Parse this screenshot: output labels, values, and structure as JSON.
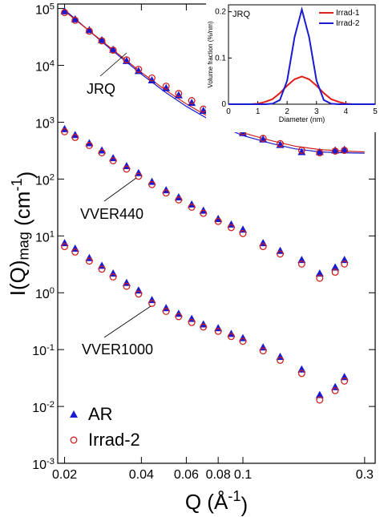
{
  "chart_data": [
    {
      "type": "scatter",
      "xlabel": "Q (Å^-1)",
      "ylabel": "I(Q)_mag (cm^-1)",
      "xscale": "log",
      "yscale": "log",
      "xlim": [
        0.0188,
        0.33
      ],
      "ylim": [
        0.001,
        120000
      ],
      "xticks": [
        0.02,
        0.04,
        0.06,
        0.08,
        0.1,
        0.3
      ],
      "yticks": [
        {
          "value": 0.001,
          "label": "10^-3"
        },
        {
          "value": 0.01,
          "label": "10^-2"
        },
        {
          "value": 0.1,
          "label": "10^-1"
        },
        {
          "value": 1,
          "label": "10^0"
        },
        {
          "value": 10,
          "label": "10^1"
        },
        {
          "value": 100,
          "label": "10^2"
        },
        {
          "value": 1000,
          "label": "10^3"
        },
        {
          "value": 10000,
          "label": "10^4"
        },
        {
          "value": 100000,
          "label": "10^5"
        }
      ],
      "x": [
        0.02,
        0.022,
        0.025,
        0.028,
        0.031,
        0.035,
        0.039,
        0.044,
        0.05,
        0.056,
        0.063,
        0.07,
        0.08,
        0.09,
        0.1,
        0.12,
        0.14,
        0.17,
        0.2,
        0.23,
        0.25
      ],
      "annotations": [
        "JRQ",
        "VVER440",
        "VVER1000"
      ],
      "legend": "lower left",
      "series": [
        {
          "name": "AR",
          "color": "#1a1ad0",
          "marker": "triangle",
          "values": [
            [
              90000,
              65000,
              42000,
              28000,
              19000,
              12000,
              8000,
              5500,
              4000,
              3000,
              2200,
              1600,
              1100,
              800,
              650,
              500,
              400,
              300,
              300,
              320,
              330
            ],
            [
              760,
              600,
              430,
              320,
              235,
              170,
              128,
              90,
              64,
              48,
              36,
              28,
              20,
              16,
              13,
              7.5,
              5.5,
              3.8,
              2.2,
              2.8,
              3.8
            ],
            [
              7.5,
              6,
              4.1,
              3,
              2.2,
              1.5,
              1.1,
              0.75,
              0.54,
              0.43,
              0.35,
              0.28,
              0.24,
              0.19,
              0.16,
              0.11,
              0.075,
              0.045,
              0.016,
              0.022,
              0.033
            ]
          ]
        },
        {
          "name": "Irrad-2",
          "color": "#cc2020",
          "marker": "circle",
          "values": [
            [
              85000,
              62000,
              40000,
              27000,
              18500,
              12500,
              8500,
              6000,
              4300,
              3200,
              2400,
              1700,
              1150,
              850,
              680,
              520,
              420,
              320,
              290,
              310,
              320
            ],
            [
              680,
              540,
              390,
              290,
              210,
              150,
              112,
              80,
              57,
              43,
              32,
              25,
              18,
              14,
              11,
              6.5,
              4.8,
              3.2,
              1.8,
              2.3,
              3.2
            ],
            [
              6.5,
              5.2,
              3.6,
              2.6,
              1.9,
              1.3,
              0.95,
              0.65,
              0.47,
              0.38,
              0.3,
              0.25,
              0.21,
              0.17,
              0.14,
              0.095,
              0.065,
              0.038,
              0.013,
              0.019,
              0.028
            ]
          ]
        }
      ],
      "fits": [
        {
          "color": "#1a1ad0",
          "x": [
            0.02,
            0.03,
            0.04,
            0.05,
            0.06,
            0.08,
            0.1,
            0.13,
            0.16,
            0.2,
            0.25,
            0.3
          ],
          "values": [
            95000,
            20000,
            7000,
            3300,
            1900,
            900,
            580,
            420,
            340,
            300,
            290,
            285
          ]
        },
        {
          "color": "#cc2020",
          "x": [
            0.02,
            0.03,
            0.04,
            0.05,
            0.06,
            0.08,
            0.1,
            0.13,
            0.16,
            0.2,
            0.25,
            0.3
          ],
          "values": [
            90000,
            21000,
            7500,
            3600,
            2100,
            1000,
            650,
            470,
            380,
            330,
            310,
            300
          ]
        }
      ]
    },
    {
      "type": "line",
      "title": "JRQ",
      "xlabel": "Diameter (nm)",
      "ylabel": "Volume fraction (%/nm)",
      "xlim": [
        0,
        5
      ],
      "ylim": [
        0,
        0.215
      ],
      "xticks": [
        0,
        1,
        2,
        3,
        4,
        5
      ],
      "yticks": [
        0,
        0.1,
        0.2
      ],
      "legend": "upper right",
      "x": [
        0,
        0.25,
        0.5,
        0.75,
        1,
        1.25,
        1.5,
        1.75,
        2,
        2.25,
        2.5,
        2.75,
        3,
        3.25,
        3.5,
        3.75,
        4,
        4.25,
        4.5,
        4.75,
        5
      ],
      "series": [
        {
          "name": "Irrad-1",
          "color": "#e0201a",
          "values": [
            0,
            0,
            0,
            0,
            0.001,
            0.005,
            0.011,
            0.024,
            0.04,
            0.054,
            0.06,
            0.054,
            0.04,
            0.024,
            0.011,
            0.005,
            0.001,
            0,
            0,
            0,
            0
          ]
        },
        {
          "name": "Irrad-2",
          "color": "#1a1ad0",
          "values": [
            0,
            0,
            0,
            0,
            0,
            0,
            0.001,
            0.009,
            0.051,
            0.145,
            0.205,
            0.145,
            0.051,
            0.009,
            0.001,
            0,
            0,
            0,
            0,
            0,
            0
          ]
        }
      ]
    }
  ]
}
